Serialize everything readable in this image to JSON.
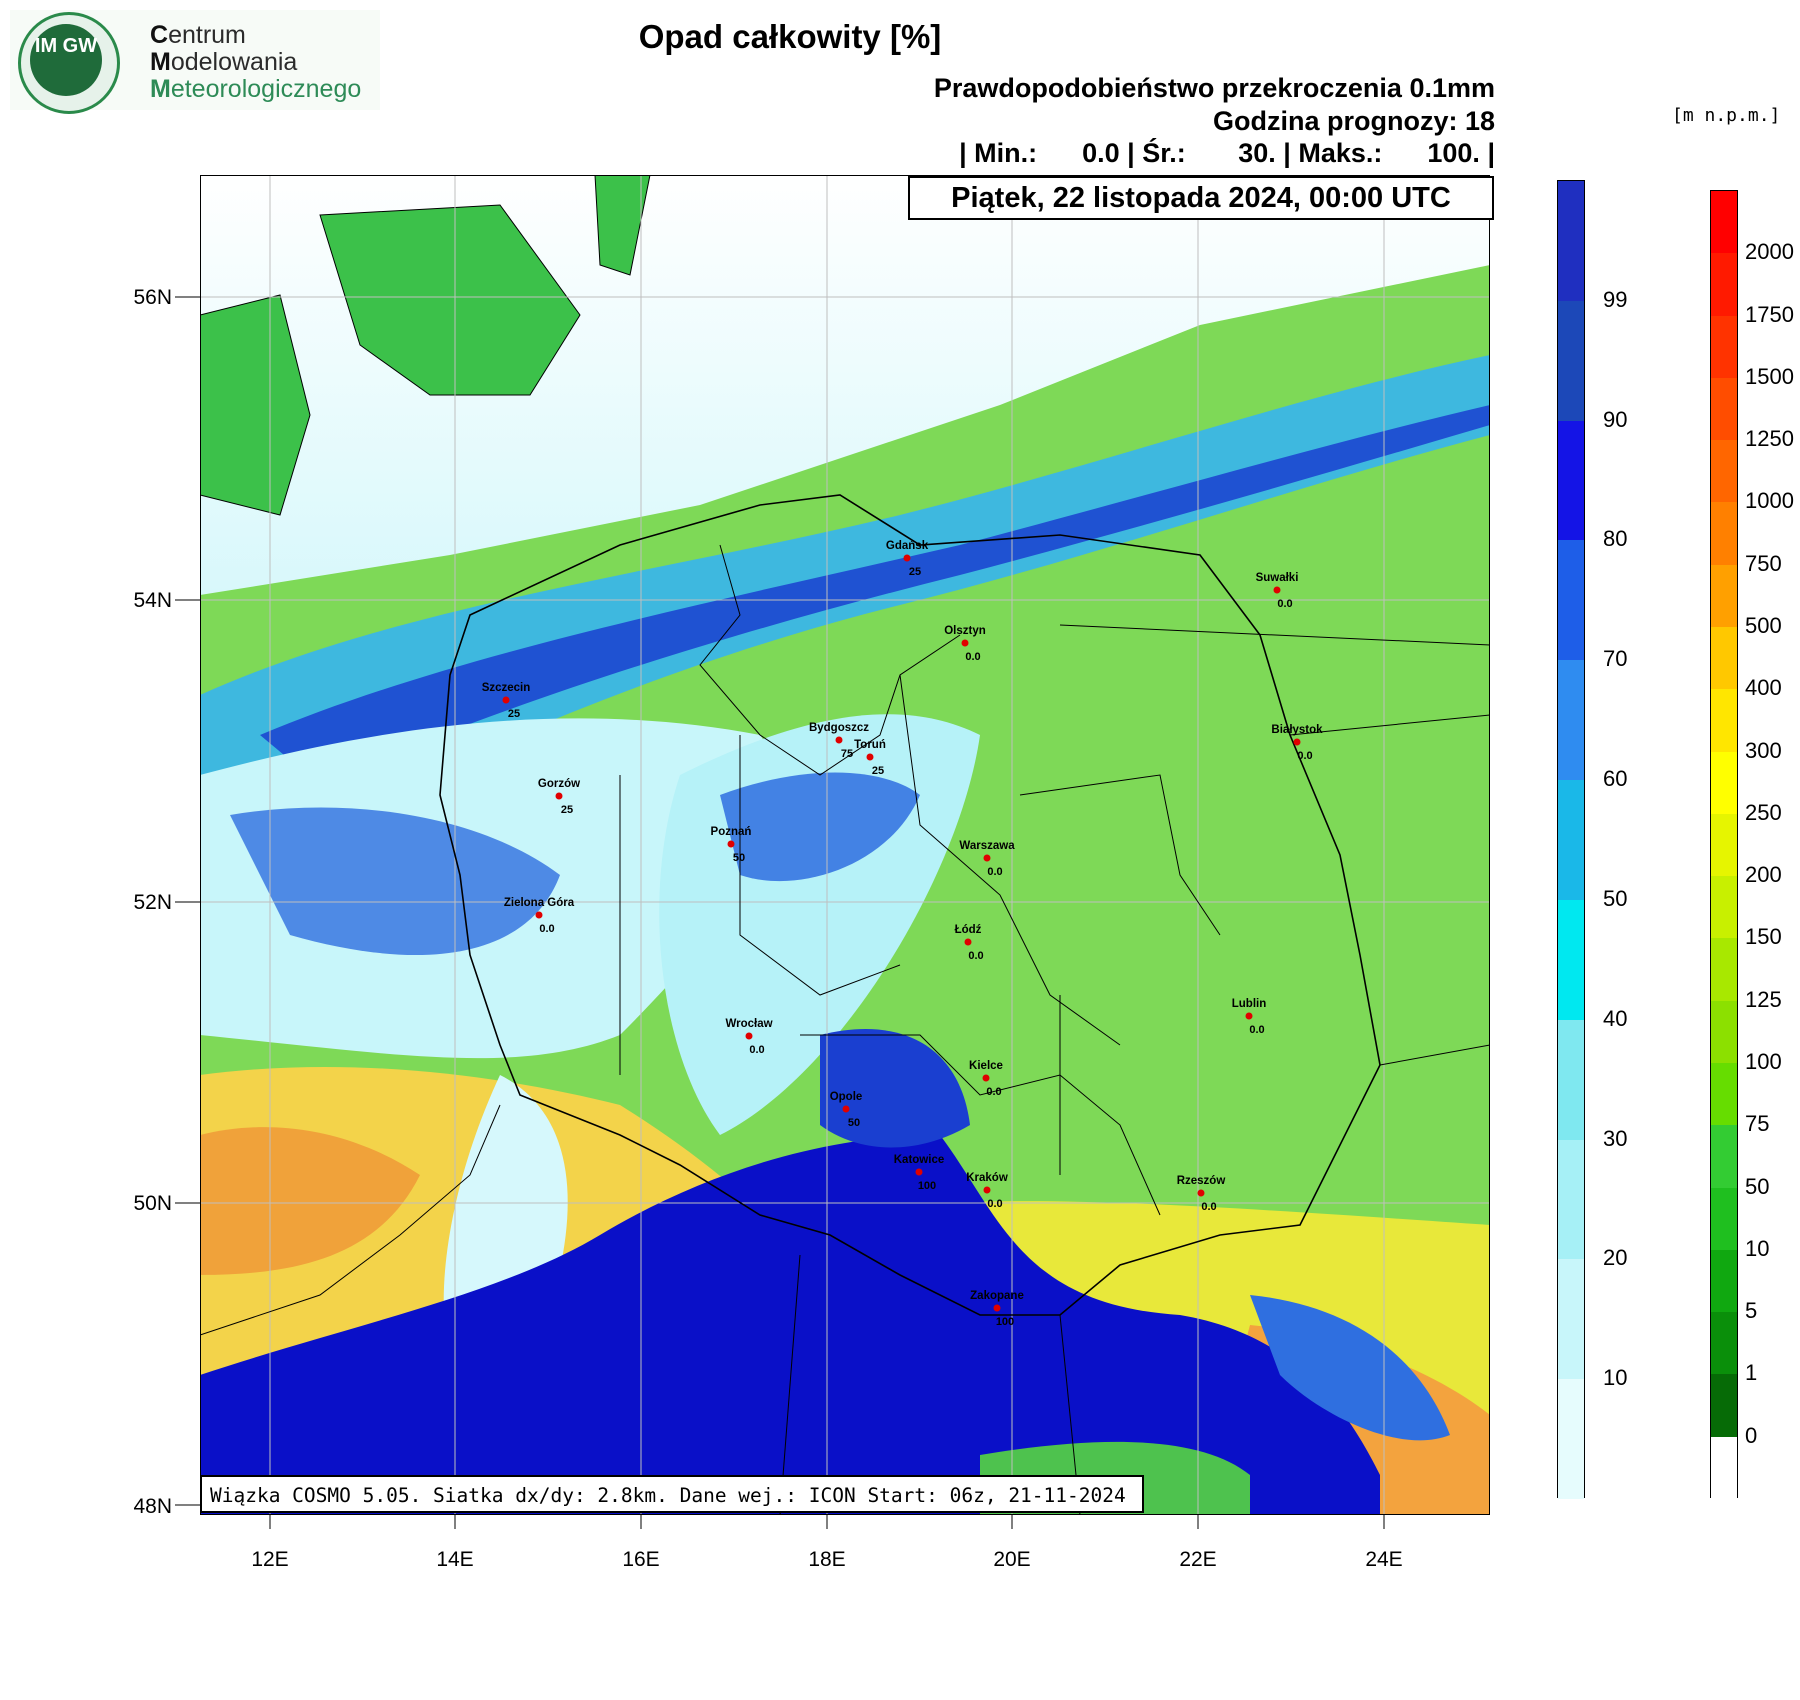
{
  "logo": {
    "badge_text": "IM GW",
    "line1_initial": "C",
    "line1_rest": "entrum",
    "line2_initial": "M",
    "line2_rest": "odelowania",
    "line3_initial": "M",
    "line3_rest": "eteorologicznego"
  },
  "header": {
    "title": "Opad całkowity [%]",
    "subtitle": "Prawdopodobieństwo przekroczenia 0.1mm",
    "forecast_hour": "Godzina prognozy: 18",
    "stats": "| Min.:      0.0 | Śr.:       30. | Maks.:      100. |",
    "date": "Piątek, 22 listopada 2024, 00:00 UTC"
  },
  "footer": {
    "run_info": "Wiązka COSMO 5.05. Siatka dx/dy: 2.8km. Dane wej.: ICON Start: 06z, 21-11-2024"
  },
  "axes": {
    "lat_labels": [
      "56N",
      "54N",
      "52N",
      "50N",
      "48N"
    ],
    "lon_labels": [
      "12E",
      "14E",
      "16E",
      "18E",
      "20E",
      "22E",
      "24E"
    ]
  },
  "precip_scale": {
    "labels": [
      "99",
      "90",
      "80",
      "70",
      "60",
      "50",
      "40",
      "30",
      "20",
      "10"
    ],
    "colors": [
      "#1f2fc0",
      "#1c48b8",
      "#1414e6",
      "#1e5ee8",
      "#2f8cf0",
      "#1ab8e8",
      "#00e8f0",
      "#7fe8f0",
      "#a6f0f6",
      "#c8f6fa",
      "#e6fcfd"
    ]
  },
  "terrain_scale": {
    "unit": "[m n.p.m.]",
    "labels": [
      "2000",
      "1750",
      "1500",
      "1250",
      "1000",
      "750",
      "500",
      "400",
      "300",
      "250",
      "200",
      "150",
      "125",
      "100",
      "75",
      "50",
      "10",
      "5",
      "1",
      "0"
    ],
    "colors": [
      "#ff0000",
      "#ff1a00",
      "#ff3300",
      "#ff4d00",
      "#ff6600",
      "#ff8000",
      "#ffa000",
      "#ffc800",
      "#ffe600",
      "#ffff00",
      "#e6f500",
      "#c8f000",
      "#a8e800",
      "#8ce000",
      "#66dd00",
      "#33cc33",
      "#1fbf1f",
      "#10a810",
      "#0a8f0a",
      "#066b06",
      "#ffffff"
    ]
  },
  "cities": [
    {
      "name": "Gdańsk",
      "value": "25"
    },
    {
      "name": "Suwałki",
      "value": "0.0"
    },
    {
      "name": "Olsztyn",
      "value": "0.0"
    },
    {
      "name": "Szczecin",
      "value": "25"
    },
    {
      "name": "Bydgoszcz",
      "value": "75"
    },
    {
      "name": "Toruń",
      "value": "25"
    },
    {
      "name": "Białystok",
      "value": "0.0"
    },
    {
      "name": "Gorzów",
      "value": "25"
    },
    {
      "name": "Poznań",
      "value": "50"
    },
    {
      "name": "Warszawa",
      "value": "0.0"
    },
    {
      "name": "Zielona Góra",
      "value": "0.0"
    },
    {
      "name": "Łódź",
      "value": "0.0"
    },
    {
      "name": "Lublin",
      "value": "0.0"
    },
    {
      "name": "Wrocław",
      "value": "0.0"
    },
    {
      "name": "Kielce",
      "value": "0.0"
    },
    {
      "name": "Opole",
      "value": "50"
    },
    {
      "name": "Katowice",
      "value": "100"
    },
    {
      "name": "Kraków",
      "value": "0.0"
    },
    {
      "name": "Rzeszów",
      "value": "0.0"
    },
    {
      "name": "Zakopane",
      "value": "100"
    }
  ]
}
